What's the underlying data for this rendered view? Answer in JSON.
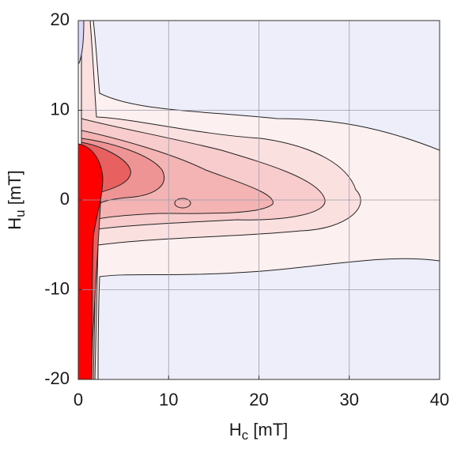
{
  "chart_data": {
    "type": "contour",
    "xlabel": [
      "H",
      "c",
      " [mT]"
    ],
    "ylabel": [
      "H",
      "u",
      " [mT]"
    ],
    "xlim": [
      0,
      40
    ],
    "xticks": [
      0,
      10,
      20,
      30,
      40
    ],
    "ylim": [
      -20,
      20
    ],
    "yticks": [
      -20,
      -10,
      0,
      10,
      20
    ],
    "grid": true
  }
}
